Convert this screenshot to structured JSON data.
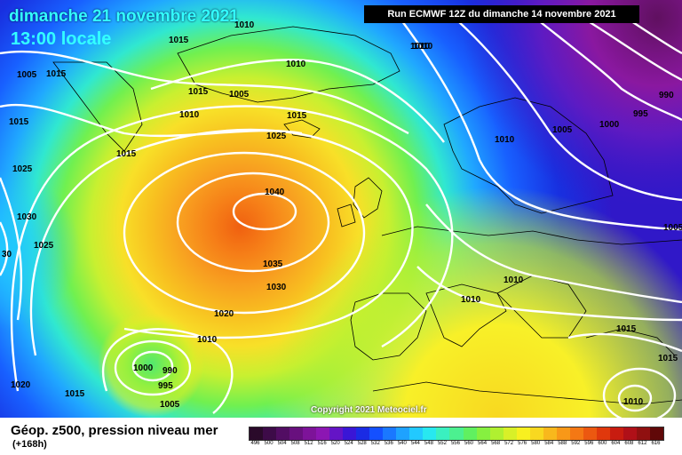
{
  "header": {
    "date": "dimanche 21 novembre 2021",
    "local_time": "13:00 locale",
    "run": "Run ECMWF 12Z du dimanche 14 novembre 2021"
  },
  "copyright": "Copyright 2021 Meteociel.fr",
  "footer": {
    "title": "Géop. z500, pression niveau mer",
    "lead_time": "(+168h)"
  },
  "legend": {
    "labels": [
      "496",
      "500",
      "504",
      "508",
      "512",
      "516",
      "520",
      "524",
      "528",
      "532",
      "536",
      "540",
      "544",
      "548",
      "552",
      "556",
      "560",
      "564",
      "568",
      "572",
      "576",
      "580",
      "584",
      "588",
      "592",
      "596",
      "600",
      "604",
      "608",
      "612",
      "616"
    ],
    "colors": [
      "#2a0a2a",
      "#3d0b48",
      "#520d63",
      "#68107e",
      "#7d1399",
      "#8c16b3",
      "#6414c6",
      "#3a16d6",
      "#1a2be4",
      "#1450ff",
      "#1a78ff",
      "#1ea2ff",
      "#22c9ff",
      "#28e8f0",
      "#3af0c0",
      "#4cf090",
      "#60f060",
      "#86f040",
      "#b0f030",
      "#d8f028",
      "#f8f020",
      "#f8d820",
      "#f8b81c",
      "#f89818",
      "#f47814",
      "#ec5810",
      "#e0380c",
      "#c81c10",
      "#b01018",
      "#901010",
      "#600808"
    ]
  },
  "isobar_labels": [
    {
      "text": "1015"
    },
    {
      "text": "1015"
    },
    {
      "text": "1010"
    },
    {
      "text": "1010"
    },
    {
      "text": "1015"
    },
    {
      "text": "1005"
    },
    {
      "text": "1010"
    },
    {
      "text": "1015"
    },
    {
      "text": "1025"
    },
    {
      "text": "1015"
    },
    {
      "text": "1025"
    },
    {
      "text": "1030"
    },
    {
      "text": "1025"
    },
    {
      "text": "30"
    },
    {
      "text": "1040"
    },
    {
      "text": "1035"
    },
    {
      "text": "1030"
    },
    {
      "text": "1020"
    },
    {
      "text": "1010"
    },
    {
      "text": "1000"
    },
    {
      "text": "990"
    },
    {
      "text": "995"
    },
    {
      "text": "1005"
    },
    {
      "text": "1020"
    },
    {
      "text": "1015"
    },
    {
      "text": "1010"
    },
    {
      "text": "1005"
    },
    {
      "text": "1000"
    },
    {
      "text": "995"
    },
    {
      "text": "990"
    },
    {
      "text": "1005"
    },
    {
      "text": "1010"
    },
    {
      "text": "1010"
    },
    {
      "text": "1015"
    },
    {
      "text": "1015"
    },
    {
      "text": "1010"
    },
    {
      "text": "1010"
    },
    {
      "text": "1005"
    },
    {
      "text": "1015"
    },
    {
      "text": "1010"
    }
  ]
}
